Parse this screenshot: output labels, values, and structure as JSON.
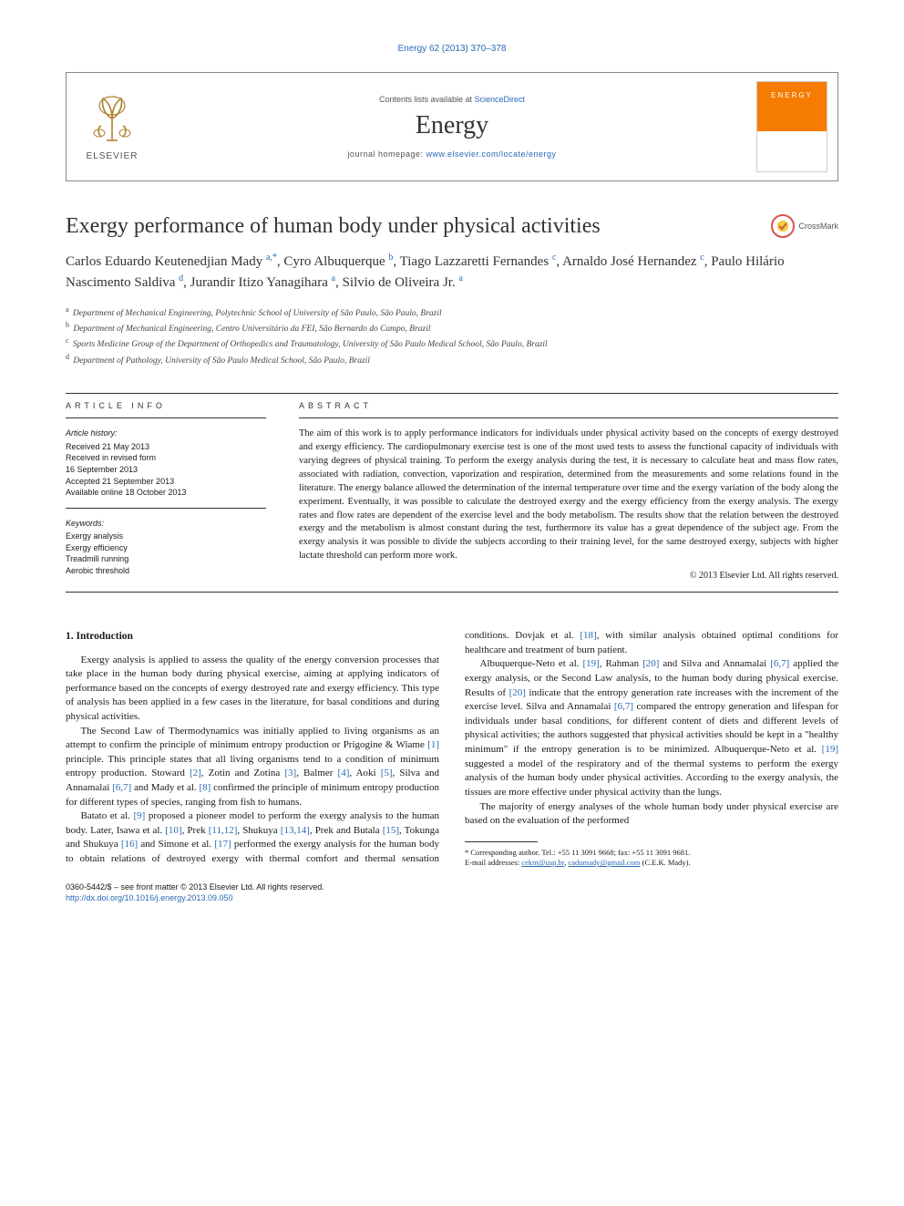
{
  "citation": "Energy 62 (2013) 370–378",
  "masthead": {
    "contents_prefix": "Contents lists available at ",
    "contents_link": "ScienceDirect",
    "journal": "Energy",
    "homepage_prefix": "journal homepage: ",
    "homepage_url": "www.elsevier.com/locate/energy",
    "publisher": "ELSEVIER",
    "cover_label": "ENERGY"
  },
  "title": "Exergy performance of human body under physical activities",
  "crossmark_label": "CrossMark",
  "authors_html": "Carlos Eduardo Keutenedjian Mady <sup>a,</sup><sup>*</sup>, Cyro Albuquerque <sup>b</sup>, Tiago Lazzaretti Fernandes <sup>c</sup>, Arnaldo José Hernandez <sup>c</sup>, Paulo Hilário Nascimento Saldiva <sup>d</sup>, Jurandir Itizo Yanagihara <sup>a</sup>, Silvio de Oliveira Jr. <sup>a</sup>",
  "affiliations": [
    {
      "sup": "a",
      "text": "Department of Mechanical Engineering, Polytechnic School of University of São Paulo, São Paulo, Brazil"
    },
    {
      "sup": "b",
      "text": "Department of Mechanical Engineering, Centro Universitário da FEI, São Bernardo do Campo, Brazil"
    },
    {
      "sup": "c",
      "text": "Sports Medicine Group of the Department of Orthopedics and Traumatology, University of São Paulo Medical School, São Paulo, Brazil"
    },
    {
      "sup": "d",
      "text": "Department of Pathology, University of São Paulo Medical School, São Paulo, Brazil"
    }
  ],
  "info": {
    "heading": "ARTICLE INFO",
    "history_label": "Article history:",
    "history": [
      "Received 21 May 2013",
      "Received in revised form",
      "16 September 2013",
      "Accepted 21 September 2013",
      "Available online 18 October 2013"
    ],
    "keywords_label": "Keywords:",
    "keywords": [
      "Exergy analysis",
      "Exergy efficiency",
      "Treadmill running",
      "Aerobic threshold"
    ]
  },
  "abstract": {
    "heading": "ABSTRACT",
    "body": "The aim of this work is to apply performance indicators for individuals under physical activity based on the concepts of exergy destroyed and exergy efficiency. The cardiopulmonary exercise test is one of the most used tests to assess the functional capacity of individuals with varying degrees of physical training. To perform the exergy analysis during the test, it is necessary to calculate heat and mass flow rates, associated with radiation, convection, vaporization and respiration, determined from the measurements and some relations found in the literature. The energy balance allowed the determination of the internal temperature over time and the exergy variation of the body along the experiment. Eventually, it was possible to calculate the destroyed exergy and the exergy efficiency from the exergy analysis. The exergy rates and flow rates are dependent of the exercise level and the body metabolism. The results show that the relation between the destroyed exergy and the metabolism is almost constant during the test, furthermore its value has a great dependence of the subject age. From the exergy analysis it was possible to divide the subjects according to their training level, for the same destroyed exergy, subjects with higher lactate threshold can perform more work.",
    "copyright": "© 2013 Elsevier Ltd. All rights reserved."
  },
  "section1": {
    "heading": "1. Introduction",
    "p1": "Exergy analysis is applied to assess the quality of the energy conversion processes that take place in the human body during physical exercise, aiming at applying indicators of performance based on the concepts of exergy destroyed rate and exergy efficiency. This type of analysis has been applied in a few cases in the literature, for basal conditions and during physical activities.",
    "p2a": "The Second Law of Thermodynamics was initially applied to living organisms as an attempt to confirm the principle of minimum entropy production or Prigogine & Wiame ",
    "p2r1": "[1]",
    "p2b": " principle. This principle states that all living organisms tend to a condition of minimum entropy production. Stoward ",
    "p2r2": "[2]",
    "p2c": ", Zotin and Zotina ",
    "p2r3": "[3]",
    "p2d": ", Balmer ",
    "p2r4": "[4]",
    "p2e": ", Aoki ",
    "p2r5": "[5]",
    "p2f": ", Silva and Annamalai ",
    "p2r6": "[6,7]",
    "p2g": " and Mady et al. ",
    "p2r7": "[8]",
    "p2h": " confirmed the principle of minimum entropy production for different types of species, ranging from fish to humans.",
    "p3a": "Batato et al. ",
    "p3r1": "[9]",
    "p3b": " proposed a pioneer model to perform the exergy analysis to the human body. Later, Isawa et al. ",
    "p3r2": "[10]",
    "p3c": ", Prek ",
    "p3r3": "[11,12]",
    "p3d": ", Shukuya ",
    "p3r4": "[13,14]",
    "p3e": ", Prek and Butala ",
    "p3r5": "[15]",
    "p3f": ", Tokunga and Shukuya ",
    "p3r6": "[16]",
    "p3g": " and Simone et al. ",
    "p3r7": "[17]",
    "p3h": " performed the exergy analysis for the human body to obtain relations of destroyed exergy with thermal comfort and thermal sensation conditions. Dovjak et al. ",
    "p3r8": "[18]",
    "p3i": ", with similar analysis obtained optimal conditions for healthcare and treatment of burn patient.",
    "p4a": "Albuquerque-Neto et al. ",
    "p4r1": "[19]",
    "p4b": ", Rahman ",
    "p4r2": "[20]",
    "p4c": " and Silva and Annamalai ",
    "p4r3": "[6,7]",
    "p4d": " applied the exergy analysis, or the Second Law analysis, to the human body during physical exercise. Results of ",
    "p4r4": "[20]",
    "p4e": " indicate that the entropy generation rate increases with the increment of the exercise level. Silva and Annamalai ",
    "p4r5": "[6,7]",
    "p4f": " compared the entropy generation and lifespan for individuals under basal conditions, for different content of diets and different levels of physical activities; the authors suggested that physical activities should be kept in a \"healthy minimum\" if the entropy generation is to be minimized. Albuquerque-Neto et al. ",
    "p4r6": "[19]",
    "p4g": " suggested a model of the respiratory and of the thermal systems to perform the exergy analysis of the human body under physical activities. According to the exergy analysis, the tissues are more effective under physical activity than the lungs.",
    "p5": "The majority of energy analyses of the whole human body under physical exercise are based on the evaluation of the performed"
  },
  "footnote": {
    "corr_label": "* Corresponding author. Tel.: +55 11 3091 9668; fax: +55 11 3091 9681.",
    "email_label": "E-mail addresses: ",
    "email1": "cekm@usp.br",
    "email_sep": ", ",
    "email2": "cadumady@gmail.com",
    "email_post": " (C.E.K. Mady)."
  },
  "footer": {
    "line1": "0360-5442/$ – see front matter © 2013 Elsevier Ltd. All rights reserved.",
    "doi": "http://dx.doi.org/10.1016/j.energy.2013.09.050"
  },
  "colors": {
    "link": "#2a6ab5",
    "text": "#1a1a1a",
    "rule": "#333333",
    "elsevier_orange": "#f57c00"
  }
}
